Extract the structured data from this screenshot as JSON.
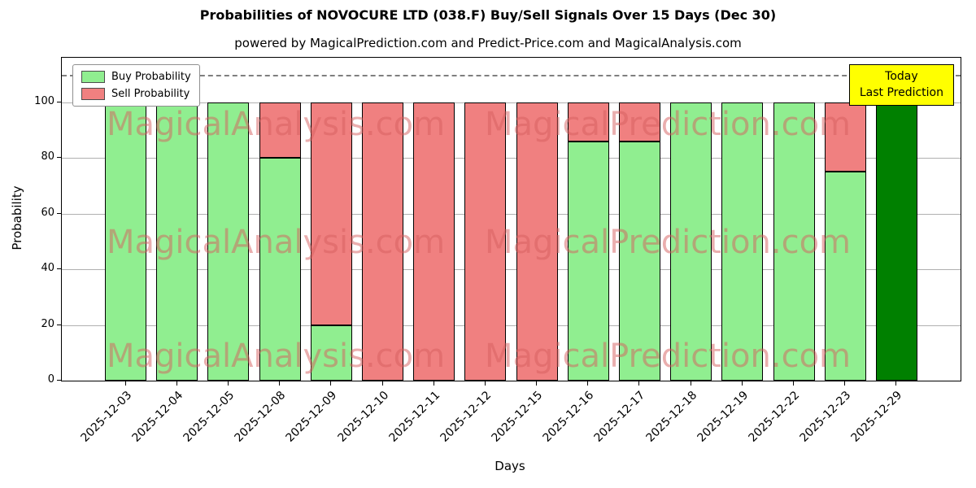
{
  "chart_data": {
    "type": "bar",
    "stacked": true,
    "title": "Probabilities of NOVOCURE LTD (038.F) Buy/Sell Signals Over 15 Days (Dec 30)",
    "subtitle": "powered by MagicalPrediction.com and Predict-Price.com and MagicalAnalysis.com",
    "xlabel": "Days",
    "ylabel": "Probability",
    "ylim": [
      0,
      116
    ],
    "yticks": [
      0,
      20,
      40,
      60,
      80,
      100
    ],
    "grid": true,
    "dashed_line_y": 110,
    "legend_position": "upper-left",
    "categories": [
      "2025-12-03",
      "2025-12-04",
      "2025-12-05",
      "2025-12-08",
      "2025-12-09",
      "2025-12-10",
      "2025-12-11",
      "2025-12-12",
      "2025-12-15",
      "2025-12-16",
      "2025-12-17",
      "2025-12-18",
      "2025-12-19",
      "2025-12-22",
      "2025-12-23",
      "2025-12-29"
    ],
    "series": [
      {
        "name": "Buy Probability",
        "color": "#90EE90",
        "values": [
          100,
          100,
          100,
          80,
          20,
          0,
          0,
          0,
          0,
          86,
          86,
          100,
          100,
          100,
          75,
          100
        ]
      },
      {
        "name": "Sell Probability",
        "color": "#F08080",
        "values": [
          0,
          0,
          0,
          20,
          80,
          100,
          100,
          100,
          100,
          14,
          14,
          0,
          0,
          0,
          25,
          0
        ]
      }
    ],
    "today_index": 15,
    "today_bar_color": "#008000"
  },
  "annotation": {
    "line1": "Today",
    "line2": "Last Prediction",
    "bg": "#FFFF00"
  },
  "watermarks": {
    "left": "MagicalAnalysis.com",
    "right": "MagicalPrediction.com"
  },
  "colors": {
    "bar_edge": "#000000",
    "grid": "#b0b0b0",
    "dashed_line": "#7f7f7f",
    "axis": "#000000",
    "watermark": "rgba(213,94,94,0.5)",
    "text": "#000000"
  }
}
